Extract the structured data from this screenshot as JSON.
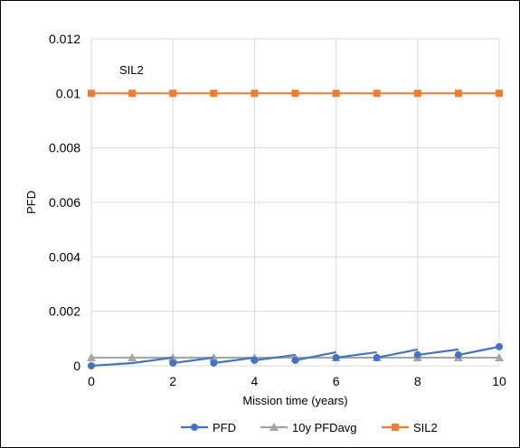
{
  "chart_data": {
    "type": "line",
    "title": "",
    "xlabel": "Mission time (years)",
    "ylabel": "PFD",
    "xlim": [
      0,
      10
    ],
    "ylim": [
      0,
      0.012
    ],
    "x_ticks": [
      "0",
      "2",
      "4",
      "6",
      "8",
      "10"
    ],
    "y_ticks": [
      "0",
      "0.002",
      "0.004",
      "0.006",
      "0.008",
      "0.01",
      "0.012"
    ],
    "grid": true,
    "legend_position": "bottom",
    "annotation": "SIL2",
    "x": [
      0,
      1,
      2,
      3,
      4,
      5,
      6,
      7,
      8,
      9,
      10
    ],
    "series": [
      {
        "name": "PFD",
        "color": "#4472C4",
        "marker": "circle",
        "segments": [
          [
            [
              0,
              0.0
            ],
            [
              1,
              0.0001
            ],
            [
              2,
              0.0003
            ]
          ],
          [
            [
              2,
              0.0001
            ],
            [
              3,
              0.0003
            ]
          ],
          [
            [
              3,
              0.0001
            ],
            [
              4,
              0.0003
            ]
          ],
          [
            [
              4,
              0.0002
            ],
            [
              5,
              0.0004
            ]
          ],
          [
            [
              5,
              0.0002
            ],
            [
              6,
              0.0005
            ]
          ],
          [
            [
              6,
              0.0003
            ],
            [
              7,
              0.0005
            ]
          ],
          [
            [
              7,
              0.0003
            ],
            [
              8,
              0.0006
            ]
          ],
          [
            [
              8,
              0.0004
            ],
            [
              9,
              0.0006
            ]
          ],
          [
            [
              9,
              0.0004
            ],
            [
              10,
              0.0007
            ]
          ]
        ]
      },
      {
        "name": "10y PFDavg",
        "color": "#A5A5A5",
        "marker": "triangle",
        "values": [
          0.0003,
          0.0003,
          0.0003,
          0.0003,
          0.0003,
          0.0003,
          0.0003,
          0.0003,
          0.0003,
          0.0003,
          0.0003
        ]
      },
      {
        "name": "SIL2",
        "color": "#ED7D31",
        "marker": "square",
        "values": [
          0.01,
          0.01,
          0.01,
          0.01,
          0.01,
          0.01,
          0.01,
          0.01,
          0.01,
          0.01,
          0.01
        ]
      }
    ]
  }
}
